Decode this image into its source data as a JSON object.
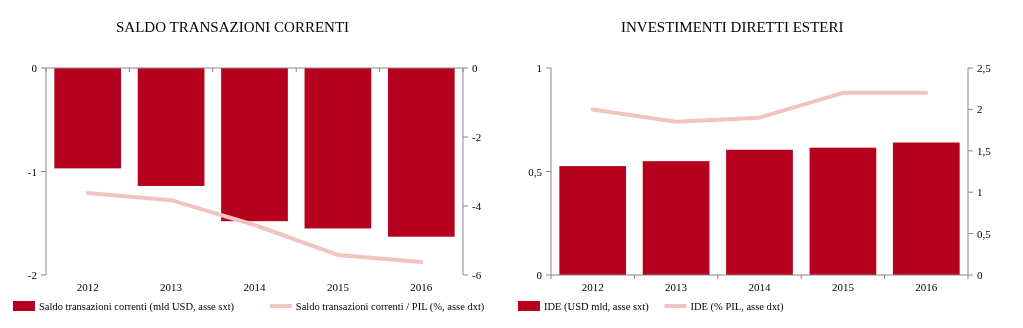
{
  "chart_data": [
    {
      "type": "bar",
      "title": "SALDO TRANSAZIONI CORRENTI",
      "categories": [
        "2012",
        "2013",
        "2014",
        "2015",
        "2016"
      ],
      "series": [
        {
          "name": "Saldo transazioni correnti (mld USD, asse sxt)",
          "color": "#b5001e",
          "values": [
            -0.97,
            -1.14,
            -1.48,
            -1.55,
            -1.63
          ]
        },
        {
          "name": "Saldo transazioni correnti / PIL (%, asse dxt)",
          "color": "#f2c4c0",
          "type": "line",
          "axis": "y2",
          "values": [
            -3.62,
            -3.83,
            -4.55,
            -5.42,
            -5.62
          ]
        }
      ],
      "ylim": [
        -2,
        0
      ],
      "yticks": [
        -2,
        -1,
        0
      ],
      "y2lim": [
        -6,
        0
      ],
      "y2ticks": [
        -6,
        -4,
        -2,
        0
      ],
      "legend": "bottom",
      "grid": false
    },
    {
      "type": "bar",
      "title": "INVESTIMENTI DIRETTI ESTERI",
      "categories": [
        "2012",
        "2013",
        "2014",
        "2015",
        "2016"
      ],
      "series": [
        {
          "name": "IDE (USD mld, asse sxt)",
          "color": "#b5001e",
          "values": [
            0.526,
            0.55,
            0.605,
            0.615,
            0.64
          ]
        },
        {
          "name": "IDE (% PIL, asse dxt)",
          "color": "#f2c4c0",
          "type": "line",
          "axis": "y2",
          "values": [
            2.0,
            1.85,
            1.9,
            2.2,
            2.2
          ]
        }
      ],
      "ylim": [
        0,
        1
      ],
      "yticks": [
        0,
        {
          "value": 0.5,
          "label": "0,5"
        },
        1
      ],
      "y2lim": [
        0,
        2.5
      ],
      "y2ticks": [
        0,
        {
          "value": 0.5,
          "label": "0,5"
        },
        1,
        {
          "value": 1.5,
          "label": "1,5"
        },
        2,
        {
          "value": 2.5,
          "label": "2,5"
        }
      ],
      "legend": "bottom",
      "grid": false
    }
  ]
}
